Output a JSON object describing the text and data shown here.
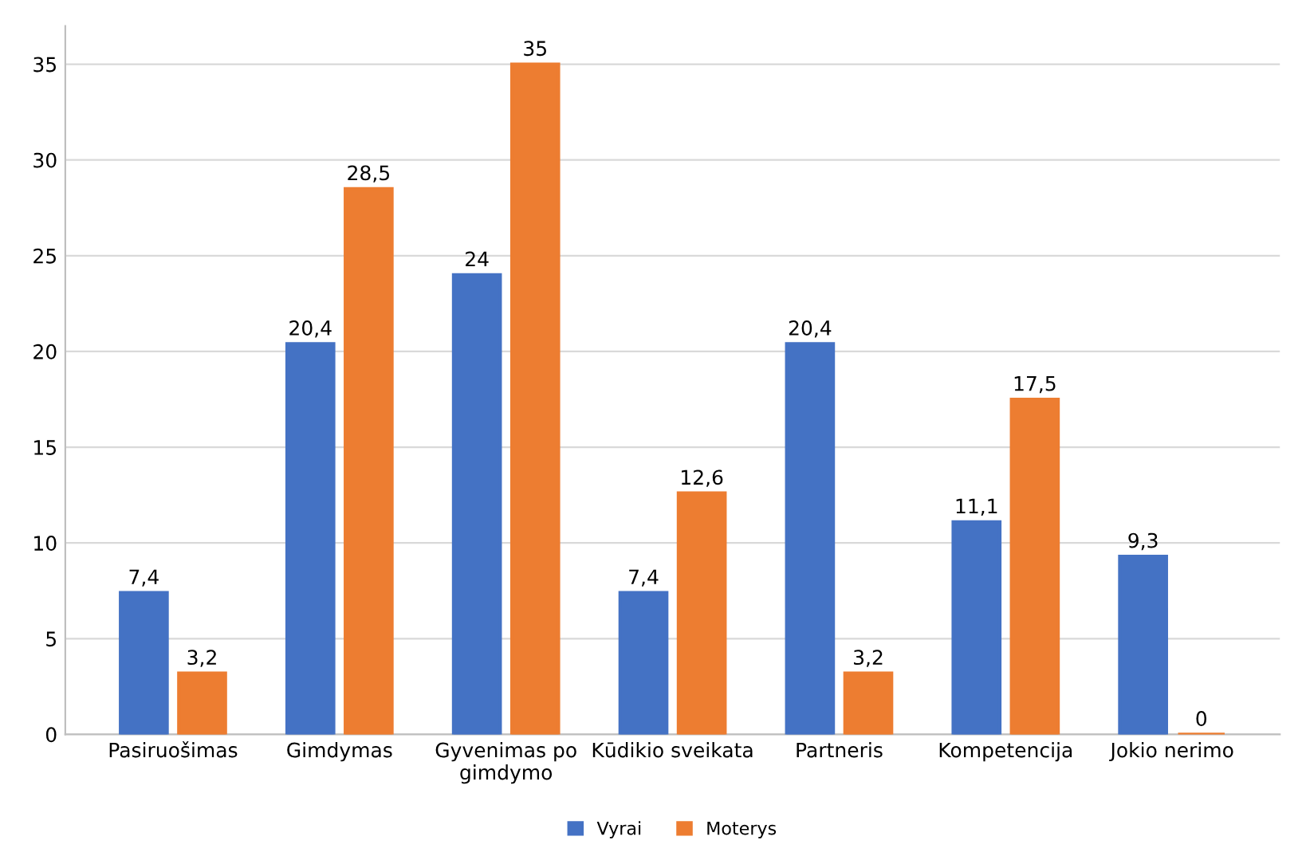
{
  "chart_data": {
    "type": "bar",
    "categories": [
      "Pasiruošimas",
      "Gimdymas",
      "Gyvenimas po\ngimdymo",
      "Kūdikio sveikata",
      "Partneris",
      "Kompetencija",
      "Jokio nerimo"
    ],
    "series": [
      {
        "name": "Vyrai",
        "color": "#4472c4",
        "values": [
          7.4,
          20.4,
          24,
          7.4,
          20.4,
          11.1,
          9.3
        ],
        "value_labels": [
          "7,4",
          "20,4",
          "24",
          "7,4",
          "20,4",
          "11,1",
          "9,3"
        ]
      },
      {
        "name": "Moterys",
        "color": "#ed7d31",
        "values": [
          3.2,
          28.5,
          35,
          12.6,
          3.2,
          17.5,
          0
        ],
        "value_labels": [
          "3,2",
          "28,5",
          "35",
          "12,6",
          "3,2",
          "17,5",
          "0"
        ]
      }
    ],
    "ylim": [
      0,
      37
    ],
    "yticks": [
      0,
      5,
      10,
      15,
      20,
      25,
      30,
      35
    ],
    "grid": "y",
    "legend": "bottom"
  }
}
